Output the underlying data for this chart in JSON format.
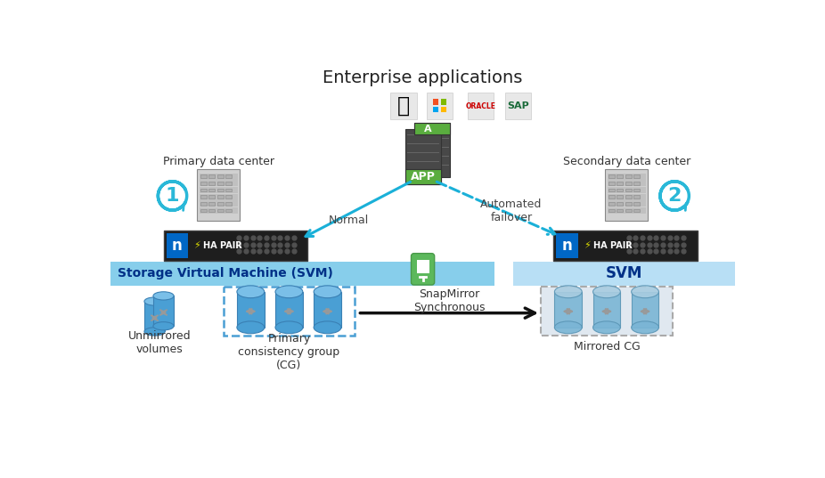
{
  "title": "Enterprise applications",
  "bg_color": "#ffffff",
  "primary_dc_label": "Primary data center",
  "secondary_dc_label": "Secondary data center",
  "svm_label": "Storage Virtual Machine (SVM)",
  "svm2_label": "SVM",
  "normal_label": "Normal",
  "failover_label": "Automated\nfailover",
  "snapmirror_label": "SnapMirror\nSynchronous",
  "unmirrored_label": "Unmirrored\nvolumes",
  "primary_cg_label": "Primary\nconsistency group\n(CG)",
  "mirrored_cg_label": "Mirrored CG",
  "svm_bar_color": "#87ceeb",
  "svm2_bar_color": "#b8dff5",
  "app_label": "APP",
  "a_label": "A",
  "netapp_blue": "#0067c5",
  "netapp_dark": "#222222",
  "cyan_arrow": "#1ab0d8",
  "title_fontsize": 14,
  "label_fontsize": 9,
  "svm_fontsize": 10
}
